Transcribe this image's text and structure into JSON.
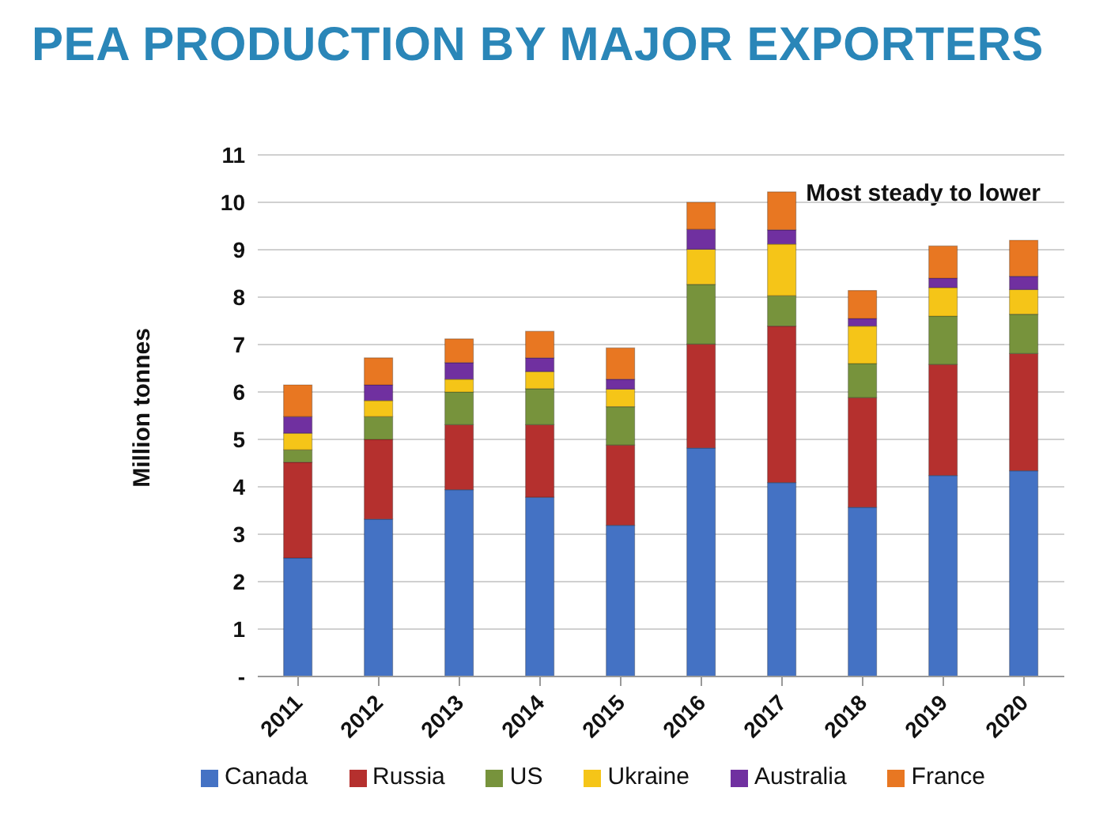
{
  "chart_data": {
    "type": "bar",
    "title": "PEA PRODUCTION BY MAJOR EXPORTERS",
    "ylabel": "Million tonnes",
    "annotations": [
      "Most steady to lower"
    ],
    "categories": [
      "2011",
      "2012",
      "2013",
      "2014",
      "2015",
      "2016",
      "2017",
      "2018",
      "2019",
      "2020"
    ],
    "stacked": true,
    "series": [
      {
        "name": "Canada",
        "color": "#4472c4",
        "values": [
          2.5,
          3.32,
          3.94,
          3.78,
          3.19,
          4.82,
          4.09,
          3.57,
          4.24,
          4.34
        ]
      },
      {
        "name": "Russia",
        "color": "#b5302e",
        "values": [
          2.02,
          1.68,
          1.37,
          1.53,
          1.69,
          2.19,
          3.3,
          2.31,
          2.34,
          2.47
        ]
      },
      {
        "name": "US",
        "color": "#77933c",
        "values": [
          0.26,
          0.48,
          0.69,
          0.76,
          0.81,
          1.26,
          0.64,
          0.72,
          1.02,
          0.83
        ]
      },
      {
        "name": "Ukraine",
        "color": "#f5c518",
        "values": [
          0.35,
          0.34,
          0.27,
          0.36,
          0.37,
          0.74,
          1.09,
          0.79,
          0.6,
          0.52
        ]
      },
      {
        "name": "Australia",
        "color": "#7030a0",
        "values": [
          0.35,
          0.33,
          0.35,
          0.29,
          0.21,
          0.42,
          0.3,
          0.16,
          0.2,
          0.28
        ]
      },
      {
        "name": "France",
        "color": "#e87722",
        "values": [
          0.67,
          0.57,
          0.5,
          0.56,
          0.66,
          0.57,
          0.8,
          0.59,
          0.68,
          0.76
        ]
      }
    ],
    "ylim": [
      0,
      11
    ],
    "yticks": [
      {
        "value": 0,
        "label": "-"
      },
      1,
      2,
      3,
      4,
      5,
      6,
      7,
      8,
      9,
      10,
      11
    ],
    "grid": "y",
    "legend": "bottom"
  }
}
